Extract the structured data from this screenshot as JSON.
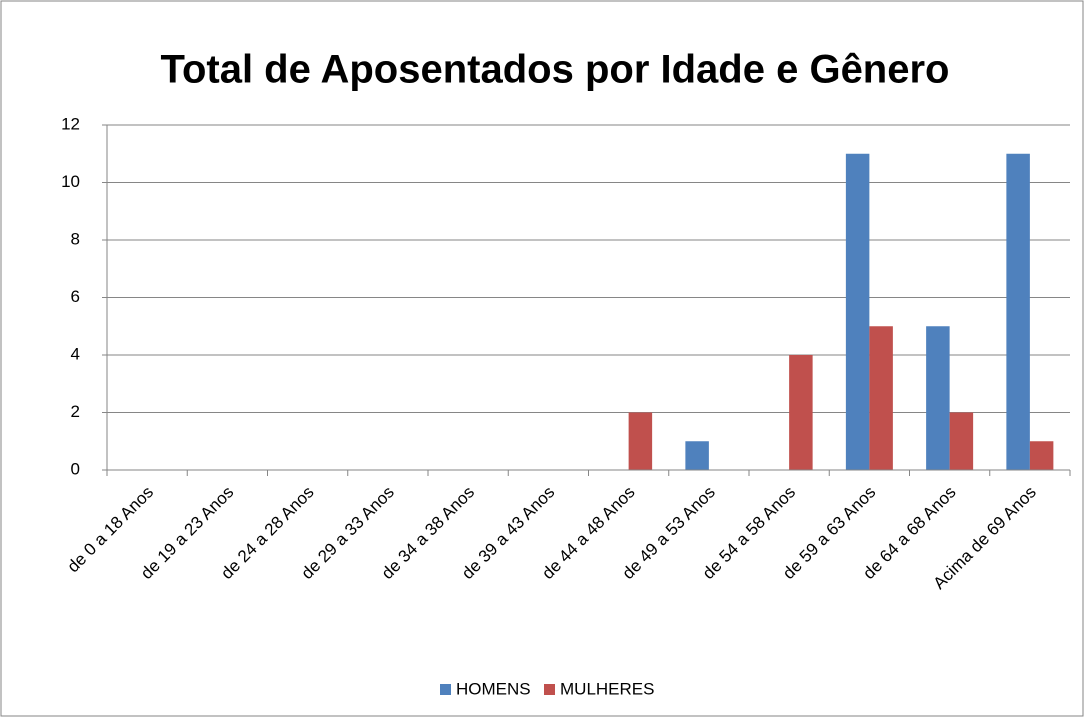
{
  "chart_data": {
    "type": "bar",
    "title": "Total de Aposentados por Idade e Gênero",
    "categories": [
      "de 0 a 18 Anos",
      "de 19 a 23 Anos",
      "de 24 a 28 Anos",
      "de 29 a 33 Anos",
      "de 34 a 38 Anos",
      "de 39 a 43 Anos",
      "de 44 a 48 Anos",
      "de 49 a 53 Anos",
      "de 54 a 58 Anos",
      "de 59 a 63 Anos",
      "de 64 a 68 Anos",
      "Acima de 69 Anos"
    ],
    "series": [
      {
        "name": "HOMENS",
        "color": "#4f81bd",
        "values": [
          0,
          0,
          0,
          0,
          0,
          0,
          0,
          1,
          0,
          11,
          5,
          11
        ]
      },
      {
        "name": "MULHERES",
        "color": "#c0504d",
        "values": [
          0,
          0,
          0,
          0,
          0,
          0,
          2,
          0,
          4,
          5,
          2,
          1
        ]
      }
    ],
    "ylim": [
      0,
      12
    ],
    "yticks": [
      0,
      2,
      4,
      6,
      8,
      10,
      12
    ],
    "grid": true,
    "legend": "bottom"
  }
}
